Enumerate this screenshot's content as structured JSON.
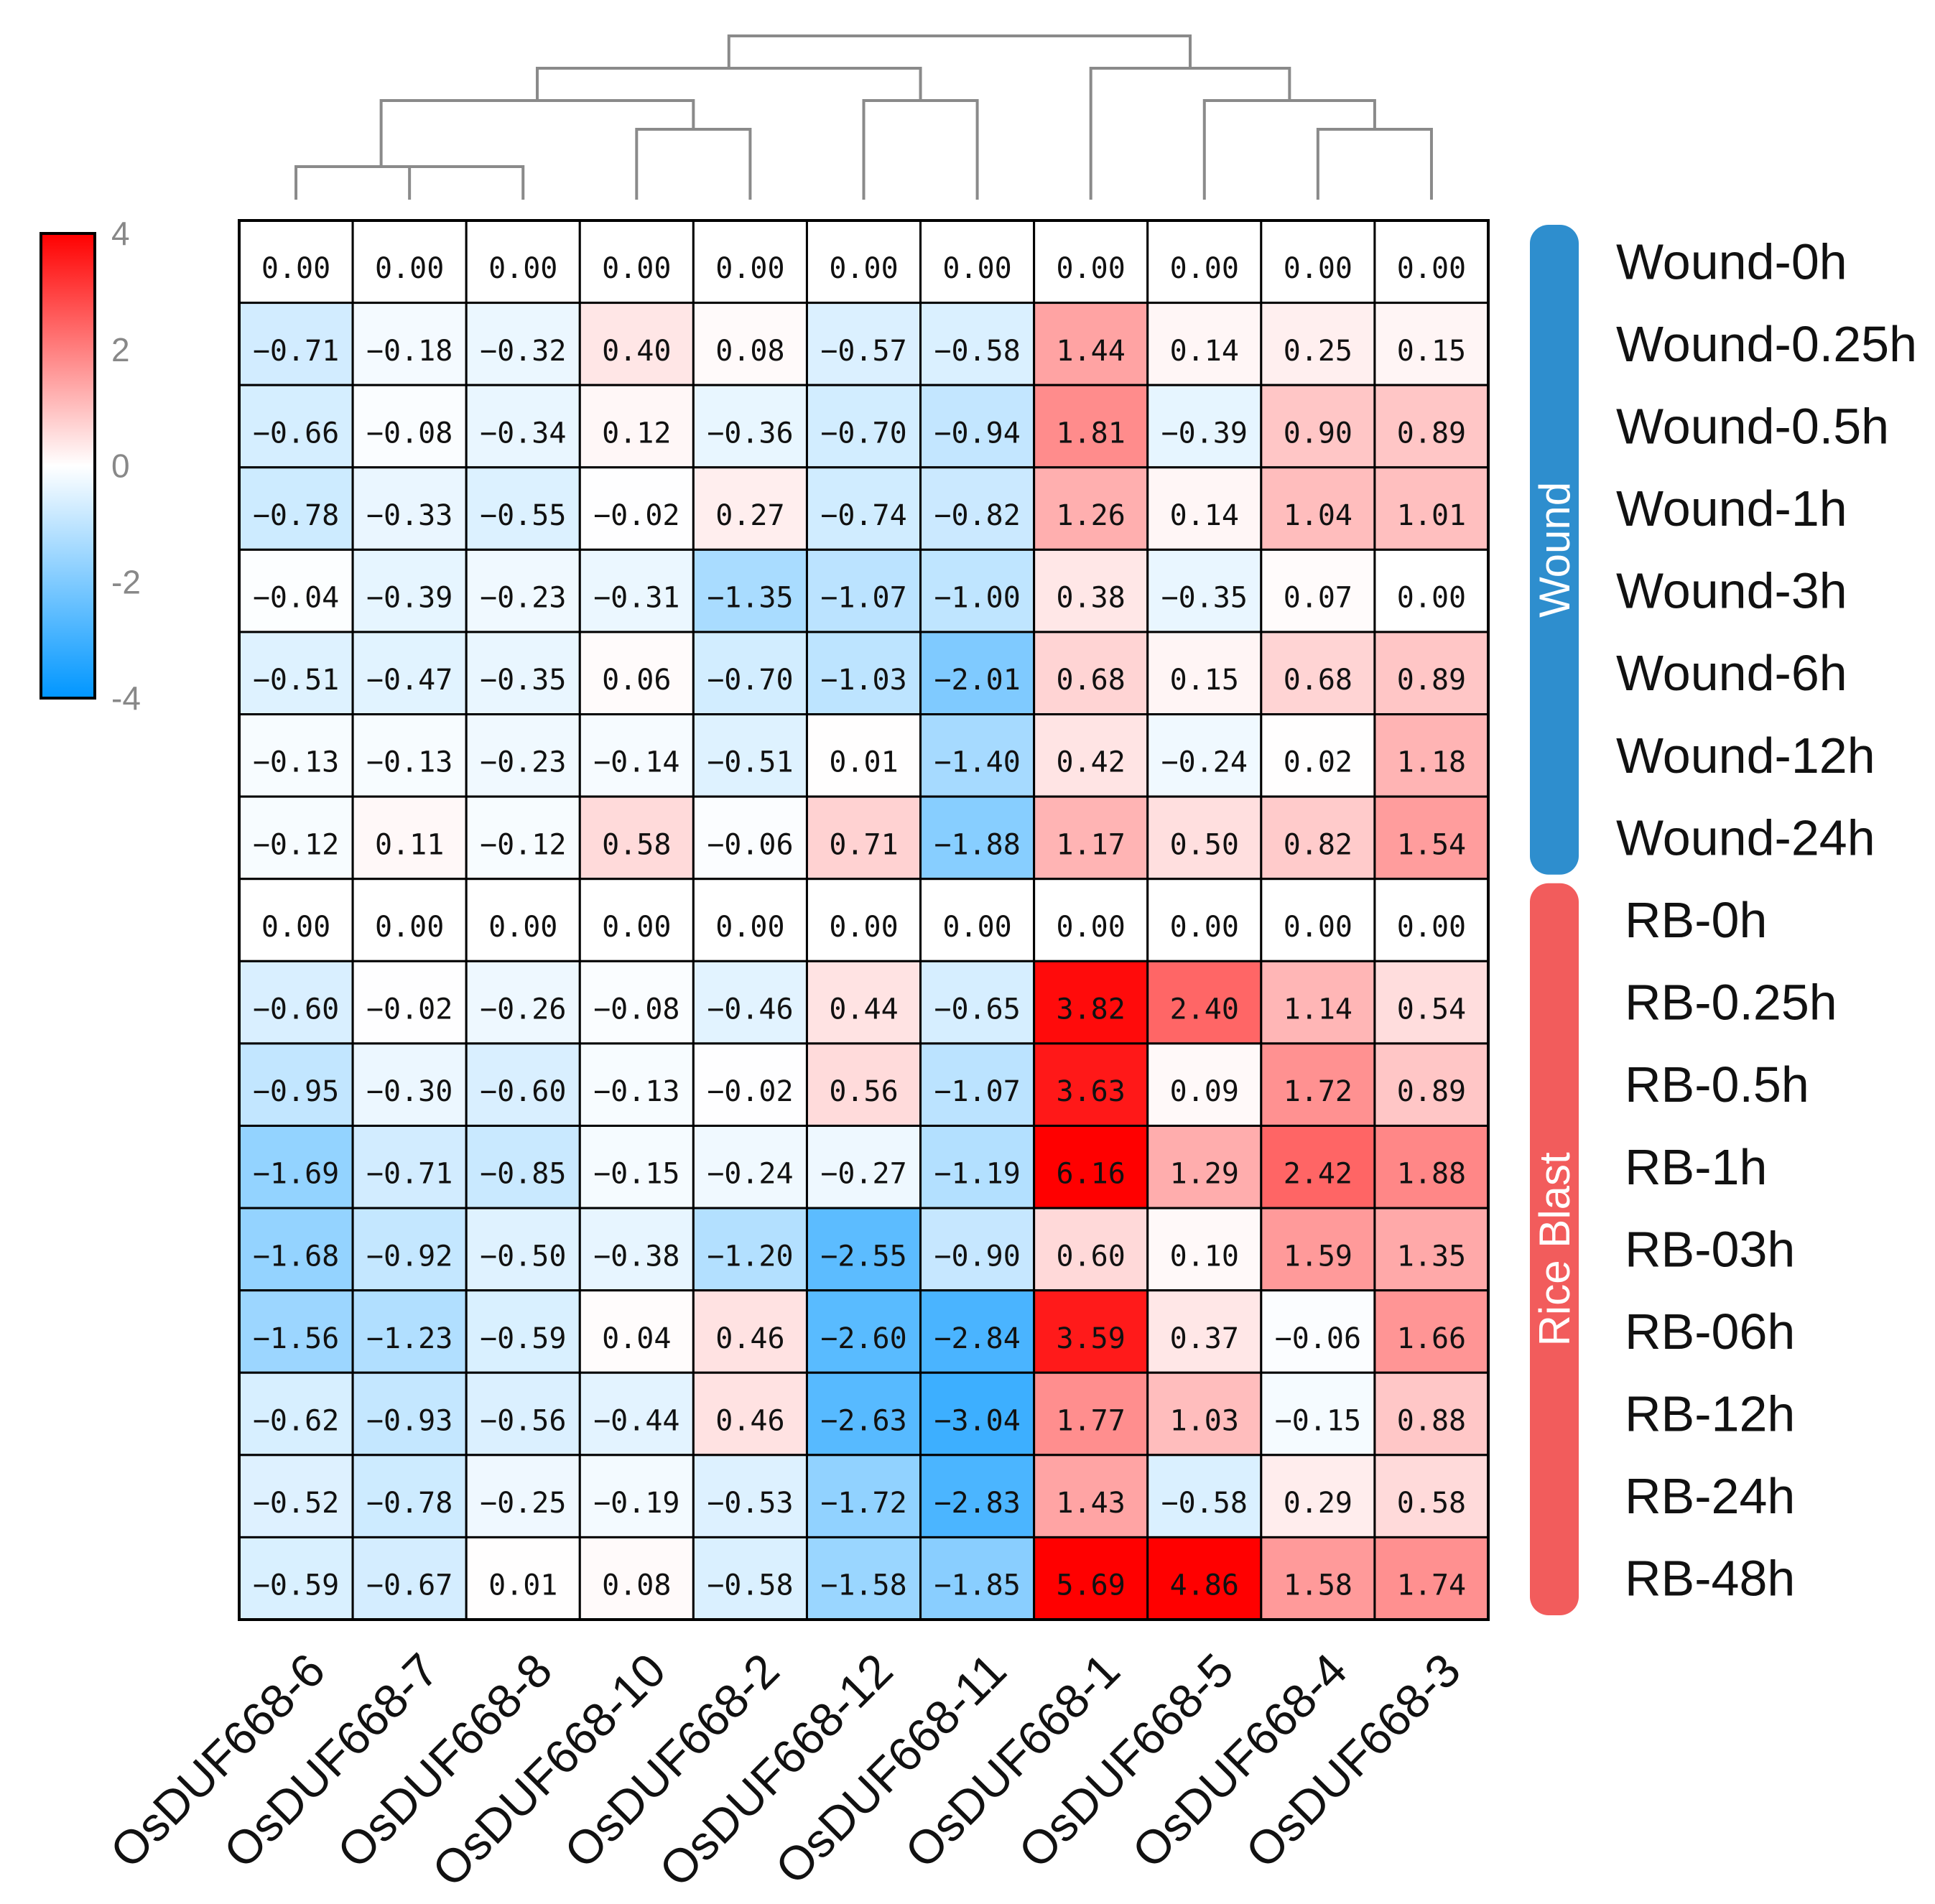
{
  "chart_data": {
    "type": "heatmap",
    "columns": [
      "OsDUF668-6",
      "OsDUF668-7",
      "OsDUF668-8",
      "OsDUF668-10",
      "OsDUF668-2",
      "OsDUF668-12",
      "OsDUF668-11",
      "OsDUF668-1",
      "OsDUF668-5",
      "OsDUF668-4",
      "OsDUF668-3"
    ],
    "rows": [
      "Wound-0h",
      "Wound-0.25h",
      "Wound-0.5h",
      "Wound-1h",
      "Wound-3h",
      "Wound-6h",
      "Wound-12h",
      "Wound-24h",
      "RB-0h",
      "RB-0.25h",
      "RB-0.5h",
      "RB-1h",
      "RB-03h",
      "RB-06h",
      "RB-12h",
      "RB-24h",
      "RB-48h"
    ],
    "values": [
      [
        "0.00",
        "0.00",
        "0.00",
        "0.00",
        "0.00",
        "0.00",
        "0.00",
        "0.00",
        "0.00",
        "0.00",
        "0.00"
      ],
      [
        "-0.71",
        "-0.18",
        "-0.32",
        "0.40",
        "0.08",
        "-0.57",
        "-0.58",
        "1.44",
        "0.14",
        "0.25",
        "0.15"
      ],
      [
        "-0.66",
        "-0.08",
        "-0.34",
        "0.12",
        "-0.36",
        "-0.70",
        "-0.94",
        "1.81",
        "-0.39",
        "0.90",
        "0.89"
      ],
      [
        "-0.78",
        "-0.33",
        "-0.55",
        "-0.02",
        "0.27",
        "-0.74",
        "-0.82",
        "1.26",
        "0.14",
        "1.04",
        "1.01"
      ],
      [
        "-0.04",
        "-0.39",
        "-0.23",
        "-0.31",
        "-1.35",
        "-1.07",
        "-1.00",
        "0.38",
        "-0.35",
        "0.07",
        "0.00"
      ],
      [
        "-0.51",
        "-0.47",
        "-0.35",
        "0.06",
        "-0.70",
        "-1.03",
        "-2.01",
        "0.68",
        "0.15",
        "0.68",
        "0.89"
      ],
      [
        "-0.13",
        "-0.13",
        "-0.23",
        "-0.14",
        "-0.51",
        "0.01",
        "-1.40",
        "0.42",
        "-0.24",
        "0.02",
        "1.18"
      ],
      [
        "-0.12",
        "0.11",
        "-0.12",
        "0.58",
        "-0.06",
        "0.71",
        "-1.88",
        "1.17",
        "0.50",
        "0.82",
        "1.54"
      ],
      [
        "0.00",
        "0.00",
        "0.00",
        "0.00",
        "0.00",
        "0.00",
        "0.00",
        "0.00",
        "0.00",
        "0.00",
        "0.00"
      ],
      [
        "-0.60",
        "-0.02",
        "-0.26",
        "-0.08",
        "-0.46",
        "0.44",
        "-0.65",
        "3.82",
        "2.40",
        "1.14",
        "0.54"
      ],
      [
        "-0.95",
        "-0.30",
        "-0.60",
        "-0.13",
        "-0.02",
        "0.56",
        "-1.07",
        "3.63",
        "0.09",
        "1.72",
        "0.89"
      ],
      [
        "-1.69",
        "-0.71",
        "-0.85",
        "-0.15",
        "-0.24",
        "-0.27",
        "-1.19",
        "6.16",
        "1.29",
        "2.42",
        "1.88"
      ],
      [
        "-1.68",
        "-0.92",
        "-0.50",
        "-0.38",
        "-1.20",
        "-2.55",
        "-0.90",
        "0.60",
        "0.10",
        "1.59",
        "1.35"
      ],
      [
        "-1.56",
        "-1.23",
        "-0.59",
        "0.04",
        "0.46",
        "-2.60",
        "-2.84",
        "3.59",
        "0.37",
        "-0.06",
        "1.66"
      ],
      [
        "-0.62",
        "-0.93",
        "-0.56",
        "-0.44",
        "0.46",
        "-2.63",
        "-3.04",
        "1.77",
        "1.03",
        "-0.15",
        "0.88"
      ],
      [
        "-0.52",
        "-0.78",
        "-0.25",
        "-0.19",
        "-0.53",
        "-1.72",
        "-2.83",
        "1.43",
        "-0.58",
        "0.29",
        "0.58"
      ],
      [
        "-0.59",
        "-0.67",
        "0.01",
        "0.08",
        "-0.58",
        "-1.58",
        "-1.85",
        "5.69",
        "4.86",
        "1.58",
        "1.74"
      ]
    ],
    "groups": [
      {
        "name": "Wound",
        "rows": [
          0,
          7
        ],
        "color": "#2e8ece"
      },
      {
        "name": "Rice Blast",
        "rows": [
          8,
          16
        ],
        "color": "#f25c5c"
      }
    ],
    "colorbar": {
      "min": -4,
      "max": 4,
      "ticks": [
        "4",
        "2",
        "0",
        "-2",
        "-4"
      ],
      "low_color": "#0096ff",
      "mid_color": "#ffffff",
      "high_color": "#ff0000"
    },
    "dendrogram": {
      "merges": [
        [
          1,
          2
        ],
        [
          0,
          11
        ],
        [
          3,
          4
        ],
        [
          5,
          6
        ],
        [
          12,
          13
        ],
        [
          9,
          10
        ],
        [
          8,
          16
        ],
        [
          7,
          17
        ],
        [
          14,
          15
        ],
        [
          18,
          19
        ]
      ]
    }
  }
}
